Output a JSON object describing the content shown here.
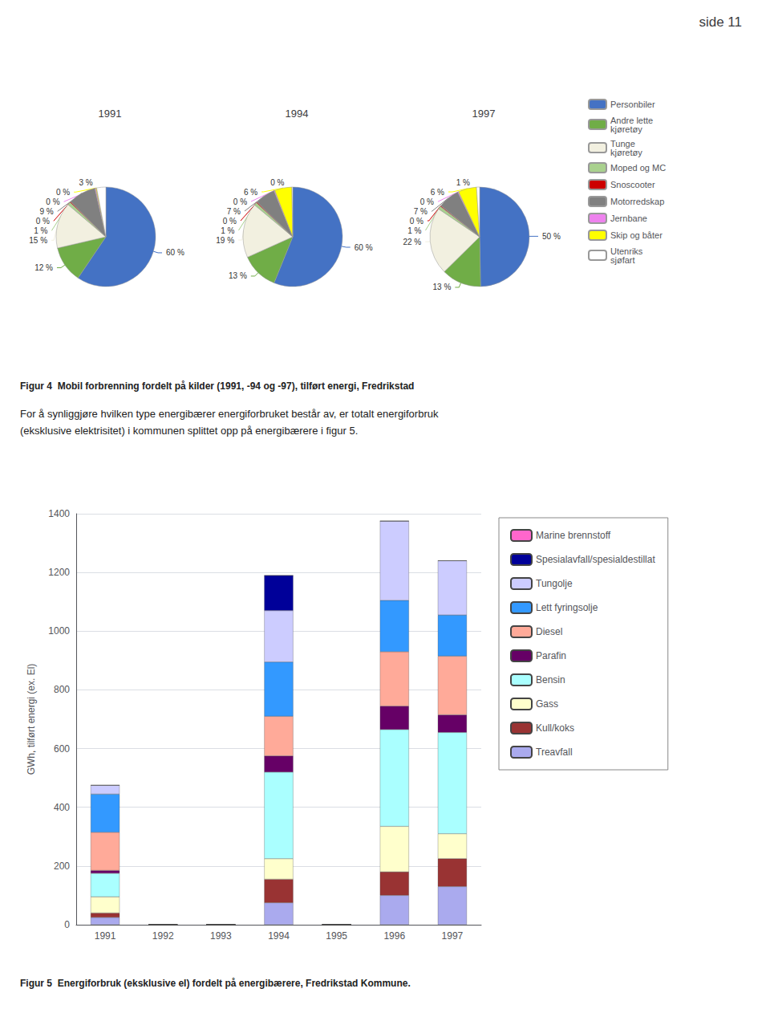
{
  "title": "side 11",
  "annotations": [
    "Figur 4  Mobil forbrenning fordelt på kilder (1991, -94 og -97), tilført energi, Fredrikstad",
    "For å synliggjøre hvilken type energibærer energiforbruket består av, er totalt energiforbruk\n(eksklusive elektrisitet) i kommunen splittet opp på energibærere i figur 5.",
    "Figur 5  Energiforbruk (eksklusive el) fordelt på energibærere, Fredrikstad Kommune."
  ],
  "chart_data": [
    {
      "type": "pie",
      "title": "1991",
      "categories": [
        "Personbiler",
        "Andre lette\nkjøretøy",
        "Tunge\nkjøretøy",
        "Moped og MC",
        "Snoscooter",
        "Motorredskap",
        "Jernbane",
        "Skip og båter",
        "Utenriks\nsjøfart"
      ],
      "values": [
        60,
        12,
        15,
        1,
        0.3,
        9,
        0.3,
        0.3,
        3
      ],
      "value_labels": [
        "60 %",
        "12 %",
        "15 %",
        "1 %",
        "0 %",
        "9 %",
        "0 %",
        "0 %",
        "3 %"
      ],
      "colors": [
        "#4472c4",
        "#70ad47",
        "#f2f0e0",
        "#a9d18e",
        "#cc0000",
        "#808080",
        "#ee82ee",
        "#ffff00",
        "#ffffff"
      ],
      "data_labels": true
    },
    {
      "type": "pie",
      "title": "1994",
      "categories": [
        "Personbiler",
        "Andre lette\nkjøretøy",
        "Tunge\nkjøretøy",
        "Moped og MC",
        "Snoscooter",
        "Motorredskap",
        "Jernbane",
        "Skip og båter",
        "Utenriks\nsjøfart"
      ],
      "values": [
        60,
        13,
        19,
        1,
        0.3,
        7,
        0.3,
        6,
        0.3
      ],
      "value_labels": [
        "60 %",
        "13 %",
        "19 %",
        "1 %",
        "0 %",
        "7 %",
        "0 %",
        "6 %",
        "0 %"
      ],
      "colors": [
        "#4472c4",
        "#70ad47",
        "#f2f0e0",
        "#a9d18e",
        "#cc0000",
        "#808080",
        "#ee82ee",
        "#ffff00",
        "#ffffff"
      ],
      "data_labels": true
    },
    {
      "type": "pie",
      "title": "1997",
      "categories": [
        "Personbiler",
        "Andre lette\nkjøretøy",
        "Tunge\nkjøretøy",
        "Moped og MC",
        "Snoscooter",
        "Motorredskap",
        "Jernbane",
        "Skip og båter",
        "Utenriks\nsjøfart"
      ],
      "values": [
        50,
        13,
        22,
        1,
        0.3,
        7,
        0.3,
        6,
        1
      ],
      "value_labels": [
        "50 %",
        "13 %",
        "22 %",
        "1 %",
        "0 %",
        "7 %",
        "0 %",
        "6 %",
        "1 %"
      ],
      "colors": [
        "#4472c4",
        "#70ad47",
        "#f2f0e0",
        "#a9d18e",
        "#cc0000",
        "#808080",
        "#ee82ee",
        "#ffff00",
        "#ffffff"
      ],
      "data_labels": true,
      "legend": "right"
    },
    {
      "type": "bar",
      "stacked": true,
      "categories": [
        "1991",
        "1992",
        "1993",
        "1994",
        "1995",
        "1996",
        "1997"
      ],
      "series": [
        {
          "name": "Treavfall",
          "color": "#aaaaee",
          "values": [
            25,
            0,
            0,
            75,
            0,
            100,
            130
          ]
        },
        {
          "name": "Kull/koks",
          "color": "#993333",
          "values": [
            15,
            0,
            0,
            80,
            0,
            80,
            95
          ]
        },
        {
          "name": "Gass",
          "color": "#ffffcc",
          "values": [
            55,
            0,
            0,
            70,
            0,
            155,
            85
          ]
        },
        {
          "name": "Bensin",
          "color": "#aaffff",
          "values": [
            80,
            0,
            0,
            295,
            0,
            330,
            345
          ]
        },
        {
          "name": "Parafin",
          "color": "#660066",
          "values": [
            10,
            0,
            0,
            55,
            0,
            80,
            60
          ]
        },
        {
          "name": "Diesel",
          "color": "#ffaa99",
          "values": [
            130,
            0,
            0,
            135,
            0,
            185,
            200
          ]
        },
        {
          "name": "Lett fyringsolje",
          "color": "#3399ff",
          "values": [
            130,
            0,
            0,
            185,
            0,
            175,
            140
          ]
        },
        {
          "name": "Tungolje",
          "color": "#ccccff",
          "values": [
            30,
            0,
            0,
            175,
            0,
            270,
            185
          ]
        },
        {
          "name": "Spesialavfall/spesialdestillat",
          "color": "#000099",
          "values": [
            0,
            0,
            0,
            120,
            0,
            0,
            0
          ]
        },
        {
          "name": "Marine brennstoff",
          "color": "#ff66cc",
          "values": [
            0,
            0,
            0,
            0,
            0,
            0,
            0
          ]
        }
      ],
      "ylabel": "GWh, tilført energi (ex. El)",
      "ylim": [
        0,
        1400
      ],
      "yticks": [
        0,
        200,
        400,
        600,
        800,
        1000,
        1200,
        1400
      ],
      "grid": true,
      "legend": "right"
    }
  ]
}
